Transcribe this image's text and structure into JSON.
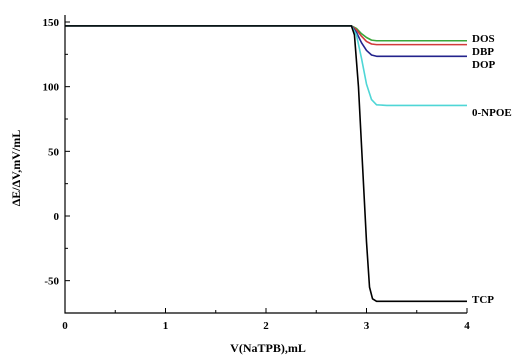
{
  "chart_data": {
    "type": "line",
    "title": "",
    "xlabel": "V(NaTPB),mL",
    "ylabel": "ΔE/ΔV,mV/mL",
    "xlim": [
      0,
      4
    ],
    "ylim": [
      -75,
      150
    ],
    "x_ticks": [
      "0",
      "1",
      "2",
      "3",
      "4"
    ],
    "y_ticks": [
      "-50",
      "0",
      "50",
      "100",
      "150"
    ],
    "grid": false,
    "legend": "labels at right end of lines",
    "series": [
      {
        "name": "DOS",
        "color": "#3aa63a",
        "x": [
          0,
          2.85,
          2.9,
          2.95,
          3.0,
          3.05,
          3.1,
          3.2,
          4.0
        ],
        "y": [
          147,
          147,
          145,
          141,
          138,
          136,
          135.5,
          135.5,
          135.5
        ]
      },
      {
        "name": "DBP",
        "color": "#d23a3a",
        "x": [
          0,
          2.85,
          2.9,
          2.95,
          3.0,
          3.05,
          3.1,
          3.2,
          4.0
        ],
        "y": [
          147,
          147,
          144,
          139,
          135,
          133,
          132.5,
          132.5,
          132.5
        ]
      },
      {
        "name": "DOP",
        "color": "#23238c",
        "x": [
          0,
          2.85,
          2.9,
          2.95,
          3.0,
          3.05,
          3.1,
          3.2,
          4.0
        ],
        "y": [
          147,
          147,
          142,
          134,
          128,
          124.5,
          123.5,
          123.5,
          123.5
        ]
      },
      {
        "name": "0-NPOE",
        "color": "#4fd6d6",
        "x": [
          0,
          2.85,
          2.9,
          2.95,
          3.0,
          3.05,
          3.1,
          3.2,
          4.0
        ],
        "y": [
          147,
          147,
          140,
          122,
          102,
          90,
          86,
          85.5,
          85.5
        ]
      },
      {
        "name": "TCP",
        "color": "#000000",
        "x": [
          0,
          2.85,
          2.88,
          2.92,
          2.96,
          3.0,
          3.03,
          3.06,
          3.1,
          3.2,
          4.0
        ],
        "y": [
          147,
          147,
          140,
          100,
          40,
          -20,
          -55,
          -64,
          -66,
          -66,
          -66
        ]
      }
    ]
  }
}
